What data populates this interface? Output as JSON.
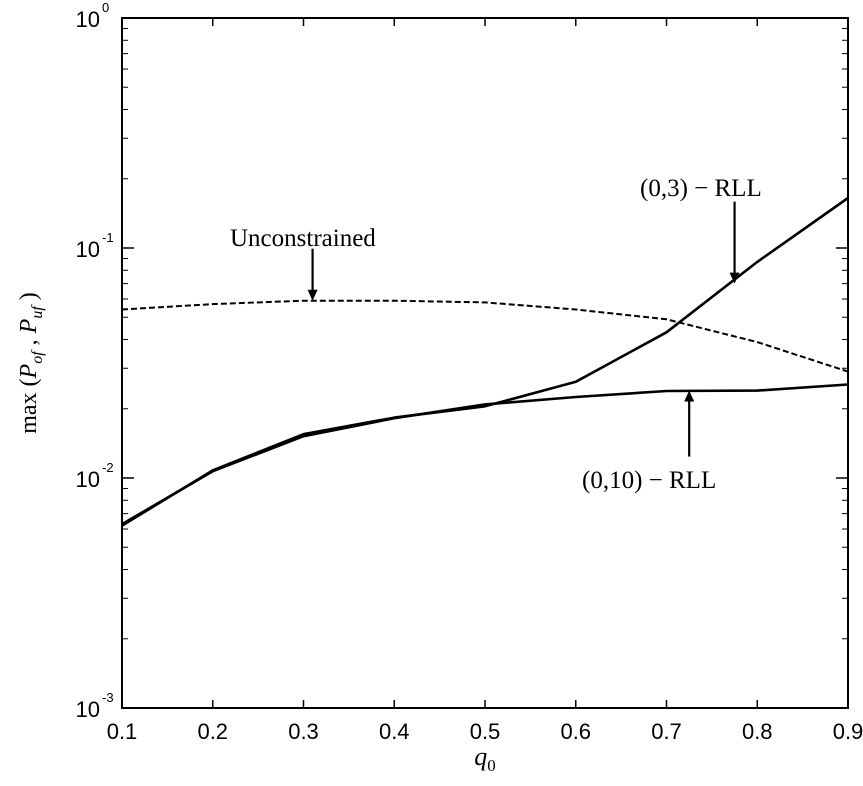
{
  "chart_data": {
    "type": "line",
    "xlabel": {
      "base": "q",
      "sub": "0"
    },
    "ylabel": {
      "prefix": "max (",
      "p1": "P",
      "p1_sub": "of",
      "sep": " , ",
      "p2": "P",
      "p2_sub": "uf",
      "suffix": " )"
    },
    "x_ticks": [
      "0.1",
      "0.2",
      "0.3",
      "0.4",
      "0.5",
      "0.6",
      "0.7",
      "0.8",
      "0.9"
    ],
    "y_ticks": [
      {
        "base": "10",
        "exp": "-3"
      },
      {
        "base": "10",
        "exp": "-2"
      },
      {
        "base": "10",
        "exp": "-1"
      },
      {
        "base": "10",
        "exp": "0"
      }
    ],
    "xlim": [
      0.1,
      0.9
    ],
    "ylim": [
      0.001,
      1
    ],
    "y_scale": "log",
    "grid": false,
    "series": [
      {
        "name": "Unconstrained",
        "style": "dashed",
        "x": [
          0.1,
          0.2,
          0.3,
          0.4,
          0.5,
          0.6,
          0.7,
          0.8,
          0.9
        ],
        "y": [
          0.054,
          0.057,
          0.059,
          0.059,
          0.058,
          0.054,
          0.049,
          0.039,
          0.029
        ]
      },
      {
        "name": "(0,3) − RLL",
        "style": "solid",
        "x": [
          0.1,
          0.2,
          0.3,
          0.4,
          0.5,
          0.6,
          0.7,
          0.8,
          0.9
        ],
        "y": [
          0.0062,
          0.0108,
          0.0155,
          0.0183,
          0.0205,
          0.0262,
          0.043,
          0.087,
          0.165
        ]
      },
      {
        "name": "(0,10) − RLL",
        "style": "solid",
        "x": [
          0.1,
          0.2,
          0.3,
          0.4,
          0.5,
          0.6,
          0.7,
          0.8,
          0.9
        ],
        "y": [
          0.0063,
          0.0107,
          0.0152,
          0.0182,
          0.0209,
          0.0225,
          0.0239,
          0.024,
          0.0255
        ]
      }
    ],
    "annotations": [
      {
        "text": "Unconstrained",
        "arrow_to": [
          0.31,
          0.059
        ]
      },
      {
        "text": "(0,3) − RLL",
        "arrow_to": [
          0.775,
          0.07
        ]
      },
      {
        "text": "(0,10) − RLL",
        "arrow_to": [
          0.725,
          0.024
        ]
      }
    ]
  }
}
